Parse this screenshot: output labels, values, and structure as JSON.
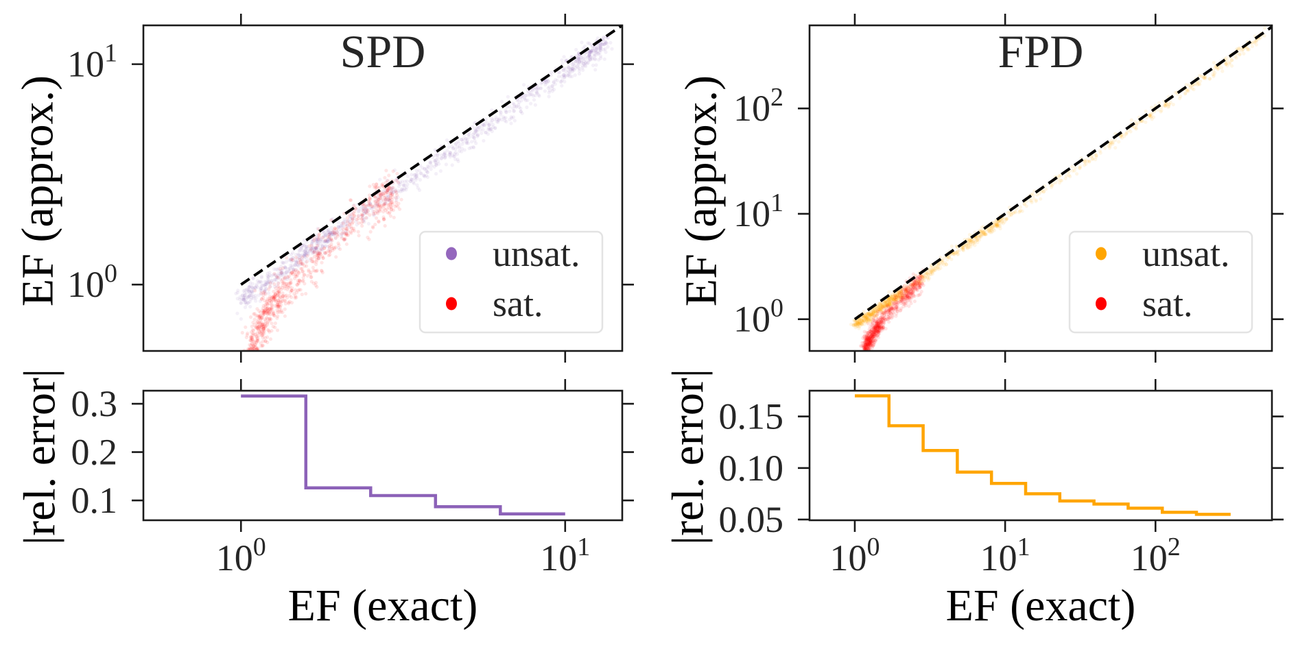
{
  "chart_data": [
    {
      "panel": "top-left",
      "type": "scatter",
      "title": "SPD",
      "xlabel": "",
      "ylabel": "EF (approx.)",
      "xscale": "log",
      "yscale": "log",
      "xlim": [
        0.5,
        15
      ],
      "ylim": [
        0.5,
        15
      ],
      "grid": false,
      "xticks": [
        {
          "value": 1,
          "base": "10",
          "exp": "0"
        },
        {
          "value": 10,
          "base": "10",
          "exp": "1"
        }
      ],
      "yticks": [
        {
          "value": 1,
          "base": "10",
          "exp": "0"
        },
        {
          "value": 10,
          "base": "10",
          "exp": "1"
        }
      ],
      "show_xtick_labels": false,
      "reference_line": {
        "style": "dashed",
        "color": "#000000",
        "from": [
          1,
          1
        ],
        "to": [
          15,
          15
        ]
      },
      "legend": {
        "placement": "lower-right"
      },
      "series": [
        {
          "name": "unsat.",
          "color": "#9467bd",
          "approx_trend": [
            [
              1.0,
              0.85
            ],
            [
              1.5,
              1.3
            ],
            [
              2.0,
              1.8
            ],
            [
              3.5,
              3.1
            ],
            [
              6.0,
              5.5
            ],
            [
              10.0,
              9.3
            ],
            [
              13.5,
              12.6
            ]
          ]
        },
        {
          "name": "sat.",
          "color": "#ff0000",
          "approx_trend": [
            [
              1.07,
              0.5
            ],
            [
              1.2,
              0.75
            ],
            [
              1.43,
              1.0
            ],
            [
              1.93,
              1.6
            ],
            [
              2.6,
              2.3
            ],
            [
              3.0,
              2.7
            ]
          ]
        }
      ]
    },
    {
      "panel": "bottom-left",
      "type": "step",
      "title": "",
      "xlabel": "EF (exact)",
      "ylabel": "|rel. error|",
      "xscale": "log",
      "yscale": "linear",
      "xlim": [
        0.5,
        15
      ],
      "ylim": [
        0.059,
        0.327
      ],
      "grid": false,
      "xticks": [
        {
          "value": 1,
          "base": "10",
          "exp": "0"
        },
        {
          "value": 10,
          "base": "10",
          "exp": "1"
        }
      ],
      "yticks": [
        {
          "value": 0.3,
          "label": "0.3"
        },
        {
          "value": 0.2,
          "label": "0.2"
        },
        {
          "value": 0.1,
          "label": "0.1"
        }
      ],
      "show_xtick_labels": true,
      "color": "#8c62b8",
      "bin_edges": [
        1.0,
        1.585,
        2.512,
        3.981,
        6.31,
        10.0
      ],
      "values": [
        0.316,
        0.126,
        0.11,
        0.087,
        0.072
      ]
    },
    {
      "panel": "top-right",
      "type": "scatter",
      "title": "FPD",
      "xlabel": "",
      "ylabel": "EF (approx.)",
      "xscale": "log",
      "yscale": "log",
      "xlim": [
        0.5,
        595
      ],
      "ylim": [
        0.5,
        614
      ],
      "grid": false,
      "xticks": [
        {
          "value": 1,
          "base": "10",
          "exp": "0"
        },
        {
          "value": 10,
          "base": "10",
          "exp": "1"
        },
        {
          "value": 100,
          "base": "10",
          "exp": "2"
        }
      ],
      "yticks": [
        {
          "value": 1,
          "base": "10",
          "exp": "0"
        },
        {
          "value": 10,
          "base": "10",
          "exp": "1"
        },
        {
          "value": 100,
          "base": "10",
          "exp": "2"
        }
      ],
      "show_xtick_labels": false,
      "reference_line": {
        "style": "dashed",
        "color": "#000000",
        "from": [
          1,
          1
        ],
        "to": [
          600,
          600
        ]
      },
      "legend": {
        "placement": "lower-right"
      },
      "series": [
        {
          "name": "unsat.",
          "color": "#ffa500",
          "approx_trend": [
            [
              1.0,
              0.88
            ],
            [
              1.5,
              1.3
            ],
            [
              2.0,
              1.75
            ],
            [
              5.0,
              4.6
            ],
            [
              10.0,
              9.2
            ],
            [
              100.0,
              93.0
            ],
            [
              550.0,
              525.0
            ]
          ]
        },
        {
          "name": "sat.",
          "color": "#ff0000",
          "approx_trend": [
            [
              1.15,
              0.5
            ],
            [
              1.3,
              0.7
            ],
            [
              1.5,
              0.95
            ],
            [
              2.2,
              1.7
            ],
            [
              2.8,
              2.4
            ]
          ]
        }
      ]
    },
    {
      "panel": "bottom-right",
      "type": "step",
      "title": "",
      "xlabel": "EF (exact)",
      "ylabel": "|rel. error|",
      "xscale": "log",
      "yscale": "linear",
      "xlim": [
        0.5,
        595
      ],
      "ylim": [
        0.0493,
        0.175
      ],
      "grid": false,
      "xticks": [
        {
          "value": 1,
          "base": "10",
          "exp": "0"
        },
        {
          "value": 10,
          "base": "10",
          "exp": "1"
        },
        {
          "value": 100,
          "base": "10",
          "exp": "2"
        }
      ],
      "yticks": [
        {
          "value": 0.15,
          "label": "0.15"
        },
        {
          "value": 0.1,
          "label": "0.10"
        },
        {
          "value": 0.05,
          "label": "0.05"
        }
      ],
      "show_xtick_labels": true,
      "color": "#ffa500",
      "bin_edges": [
        1.0,
        1.688,
        2.848,
        4.806,
        8.111,
        13.69,
        23.1,
        38.98,
        65.79,
        111.0,
        187.4,
        316.2
      ],
      "values": [
        0.17,
        0.141,
        0.117,
        0.096,
        0.085,
        0.075,
        0.068,
        0.065,
        0.061,
        0.057,
        0.055
      ]
    }
  ]
}
